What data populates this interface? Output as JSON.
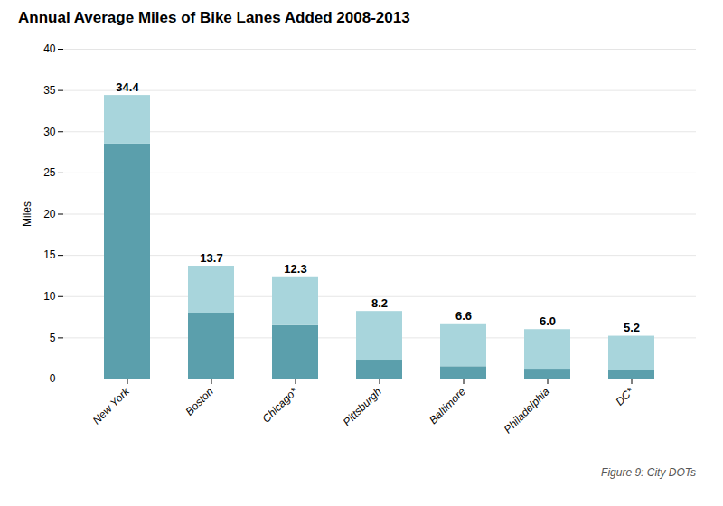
{
  "chart_data": {
    "type": "bar",
    "title": "Annual Average Miles of Bike Lanes Added 2008-2013",
    "ylabel": "Miles",
    "caption": "Figure 9: City DOTs",
    "categories": [
      "New York",
      "Boston",
      "Chicago*",
      "Pittsburgh",
      "Baltimore",
      "Philadelphia",
      "DC*"
    ],
    "stacked": true,
    "series": [
      {
        "color": "#5b9fac",
        "values": [
          28.5,
          8.0,
          6.5,
          2.3,
          1.5,
          1.2,
          1.0
        ]
      },
      {
        "color": "#a8d5dc",
        "values": [
          5.9,
          5.7,
          5.8,
          5.9,
          5.1,
          4.8,
          4.2
        ]
      }
    ],
    "values": [
      34.4,
      13.7,
      12.3,
      8.2,
      6.6,
      6.0,
      5.2
    ],
    "value_labels": [
      "34.4",
      "13.7",
      "12.3",
      "8.2",
      "6.6",
      "6.0",
      "5.2"
    ],
    "data_labels": true,
    "ylim": [
      0,
      40
    ],
    "yticks": [
      0,
      5,
      10,
      15,
      20,
      25,
      30,
      35,
      40
    ],
    "grid": true
  }
}
